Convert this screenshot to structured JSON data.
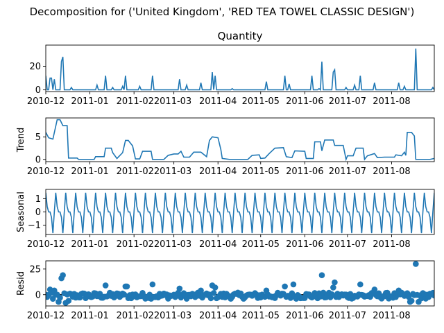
{
  "chart_data": {
    "type": "line",
    "suptitle": "Decomposition for ('United Kingdom', 'RED TEA TOWEL CLASSIC DESIGN')",
    "date_range": [
      "2010-12-01",
      "2011-08-31"
    ],
    "x_tick_labels": [
      "2010-12",
      "2011-01",
      "2011-022011-03",
      "2011-04",
      "2011-05",
      "2011-06",
      "2011-07",
      "2011-08"
    ],
    "color": "#1f77b4",
    "panels": [
      {
        "key": "observed",
        "title": "Quantity",
        "ylabel": "",
        "type": "line",
        "ylim": [
          -1.5,
          38
        ],
        "yticks": [
          0,
          20
        ],
        "baseline": 0,
        "spikes": [
          {
            "date": "2010-12-01",
            "value": 12
          },
          {
            "date": "2010-12-04",
            "value": 10
          },
          {
            "date": "2010-12-05",
            "value": 10
          },
          {
            "date": "2010-12-07",
            "value": 9
          },
          {
            "date": "2010-12-12",
            "value": 24
          },
          {
            "date": "2010-12-13",
            "value": 28
          },
          {
            "date": "2010-12-19",
            "value": 2
          },
          {
            "date": "2011-01-06",
            "value": 4
          },
          {
            "date": "2011-01-12",
            "value": 12
          },
          {
            "date": "2011-01-17",
            "value": 2
          },
          {
            "date": "2011-01-24",
            "value": 3
          },
          {
            "date": "2011-01-26",
            "value": 12
          },
          {
            "date": "2011-02-05",
            "value": 3
          },
          {
            "date": "2011-02-14",
            "value": 12
          },
          {
            "date": "2011-03-05",
            "value": 9
          },
          {
            "date": "2011-03-10",
            "value": 4
          },
          {
            "date": "2011-03-20",
            "value": 6
          },
          {
            "date": "2011-03-28",
            "value": 15
          },
          {
            "date": "2011-03-30",
            "value": 12
          },
          {
            "date": "2011-04-11",
            "value": 1
          },
          {
            "date": "2011-05-05",
            "value": 7
          },
          {
            "date": "2011-05-18",
            "value": 12
          },
          {
            "date": "2011-05-21",
            "value": 5
          },
          {
            "date": "2011-06-06",
            "value": 12
          },
          {
            "date": "2011-06-11",
            "value": 1
          },
          {
            "date": "2011-06-13",
            "value": 24
          },
          {
            "date": "2011-06-21",
            "value": 15
          },
          {
            "date": "2011-06-22",
            "value": 17
          },
          {
            "date": "2011-06-30",
            "value": 2
          },
          {
            "date": "2011-07-06",
            "value": 4
          },
          {
            "date": "2011-07-10",
            "value": 12
          },
          {
            "date": "2011-07-20",
            "value": 6
          },
          {
            "date": "2011-08-06",
            "value": 6
          },
          {
            "date": "2011-08-10",
            "value": 3
          },
          {
            "date": "2011-08-18",
            "value": 35
          },
          {
            "date": "2011-08-30",
            "value": 2
          }
        ]
      },
      {
        "key": "trend",
        "title": "",
        "ylabel": "Trend",
        "type": "line",
        "ylim": [
          -0.5,
          9.2
        ],
        "yticks": [
          0,
          5
        ],
        "series": [
          {
            "date": "2010-12-01",
            "value": 6.0
          },
          {
            "date": "2010-12-03",
            "value": 4.8
          },
          {
            "date": "2010-12-06",
            "value": 4.5
          },
          {
            "date": "2010-12-09",
            "value": 8.8
          },
          {
            "date": "2010-12-11",
            "value": 8.8
          },
          {
            "date": "2010-12-13",
            "value": 7.5
          },
          {
            "date": "2010-12-16",
            "value": 7.5
          },
          {
            "date": "2010-12-17",
            "value": 0.3
          },
          {
            "date": "2010-12-23",
            "value": 0.3
          },
          {
            "date": "2010-12-24",
            "value": 0.0
          },
          {
            "date": "2011-01-04",
            "value": 0.0
          },
          {
            "date": "2011-01-05",
            "value": 0.6
          },
          {
            "date": "2011-01-11",
            "value": 0.6
          },
          {
            "date": "2011-01-12",
            "value": 2.5
          },
          {
            "date": "2011-01-16",
            "value": 2.5
          },
          {
            "date": "2011-01-17",
            "value": 1.5
          },
          {
            "date": "2011-01-20",
            "value": 0.2
          },
          {
            "date": "2011-01-24",
            "value": 1.5
          },
          {
            "date": "2011-01-26",
            "value": 4.2
          },
          {
            "date": "2011-01-28",
            "value": 4.2
          },
          {
            "date": "2011-01-31",
            "value": 3.0
          },
          {
            "date": "2011-02-02",
            "value": 0.1
          },
          {
            "date": "2011-02-05",
            "value": 0.1
          },
          {
            "date": "2011-02-07",
            "value": 1.8
          },
          {
            "date": "2011-02-13",
            "value": 1.8
          },
          {
            "date": "2011-02-14",
            "value": 0.0
          },
          {
            "date": "2011-02-22",
            "value": 0.0
          },
          {
            "date": "2011-02-25",
            "value": 0.9
          },
          {
            "date": "2011-03-01",
            "value": 1.2
          },
          {
            "date": "2011-03-04",
            "value": 1.2
          },
          {
            "date": "2011-03-06",
            "value": 1.8
          },
          {
            "date": "2011-03-08",
            "value": 0.5
          },
          {
            "date": "2011-03-12",
            "value": 0.5
          },
          {
            "date": "2011-03-15",
            "value": 1.6
          },
          {
            "date": "2011-03-20",
            "value": 1.6
          },
          {
            "date": "2011-03-24",
            "value": 0.6
          },
          {
            "date": "2011-03-26",
            "value": 4.2
          },
          {
            "date": "2011-03-28",
            "value": 5.0
          },
          {
            "date": "2011-04-01",
            "value": 4.8
          },
          {
            "date": "2011-04-03",
            "value": 2.2
          },
          {
            "date": "2011-04-04",
            "value": 0.2
          },
          {
            "date": "2011-04-09",
            "value": 0.0
          },
          {
            "date": "2011-04-22",
            "value": 0.0
          },
          {
            "date": "2011-04-25",
            "value": 0.9
          },
          {
            "date": "2011-04-30",
            "value": 1.0
          },
          {
            "date": "2011-05-01",
            "value": 0.2
          },
          {
            "date": "2011-05-04",
            "value": 0.3
          },
          {
            "date": "2011-05-07",
            "value": 1.3
          },
          {
            "date": "2011-05-11",
            "value": 2.5
          },
          {
            "date": "2011-05-17",
            "value": 2.6
          },
          {
            "date": "2011-05-19",
            "value": 0.6
          },
          {
            "date": "2011-05-23",
            "value": 0.4
          },
          {
            "date": "2011-05-25",
            "value": 1.9
          },
          {
            "date": "2011-06-01",
            "value": 1.8
          },
          {
            "date": "2011-06-02",
            "value": 0.2
          },
          {
            "date": "2011-06-07",
            "value": 0.2
          },
          {
            "date": "2011-06-08",
            "value": 3.9
          },
          {
            "date": "2011-06-12",
            "value": 3.9
          },
          {
            "date": "2011-06-13",
            "value": 1.9
          },
          {
            "date": "2011-06-15",
            "value": 4.3
          },
          {
            "date": "2011-06-21",
            "value": 4.3
          },
          {
            "date": "2011-06-22",
            "value": 3.1
          },
          {
            "date": "2011-06-28",
            "value": 3.1
          },
          {
            "date": "2011-06-30",
            "value": 0.0
          },
          {
            "date": "2011-07-01",
            "value": 0.8
          },
          {
            "date": "2011-07-05",
            "value": 0.8
          },
          {
            "date": "2011-07-07",
            "value": 2.5
          },
          {
            "date": "2011-07-12",
            "value": 2.5
          },
          {
            "date": "2011-07-13",
            "value": 0.0
          },
          {
            "date": "2011-07-15",
            "value": 0.8
          },
          {
            "date": "2011-07-20",
            "value": 1.3
          },
          {
            "date": "2011-07-22",
            "value": 0.4
          },
          {
            "date": "2011-07-27",
            "value": 0.5
          },
          {
            "date": "2011-08-03",
            "value": 0.5
          },
          {
            "date": "2011-08-04",
            "value": 1.0
          },
          {
            "date": "2011-08-08",
            "value": 0.8
          },
          {
            "date": "2011-08-10",
            "value": 1.6
          },
          {
            "date": "2011-08-11",
            "value": 0.9
          },
          {
            "date": "2011-08-12",
            "value": 6.0
          },
          {
            "date": "2011-08-15",
            "value": 6.0
          },
          {
            "date": "2011-08-17",
            "value": 5.2
          },
          {
            "date": "2011-08-18",
            "value": 0.0
          },
          {
            "date": "2011-08-28",
            "value": 0.0
          },
          {
            "date": "2011-08-31",
            "value": 0.2
          }
        ]
      },
      {
        "key": "seasonal",
        "title": "",
        "ylabel": "Seasonal",
        "type": "line",
        "ylim": [
          -1.7,
          1.7
        ],
        "yticks": [
          -1,
          0,
          1
        ],
        "period_days": 7,
        "weekly_pattern": [
          1.45,
          0.4,
          0.0,
          0.0,
          -0.4,
          -1.6,
          0.0
        ]
      },
      {
        "key": "resid",
        "title": "",
        "ylabel": "Resid",
        "type": "scatter",
        "ylim": [
          -11,
          33
        ],
        "yticks": [
          0,
          25
        ],
        "baseline": 0,
        "noise_range": [
          -4,
          2
        ],
        "outliers": [
          {
            "date": "2010-12-04",
            "value": 5
          },
          {
            "date": "2010-12-06",
            "value": -4
          },
          {
            "date": "2010-12-07",
            "value": 4
          },
          {
            "date": "2010-12-10",
            "value": -7
          },
          {
            "date": "2010-12-12",
            "value": 16
          },
          {
            "date": "2010-12-13",
            "value": 19
          },
          {
            "date": "2010-12-15",
            "value": -8
          },
          {
            "date": "2010-12-17",
            "value": -6
          },
          {
            "date": "2011-01-12",
            "value": 9
          },
          {
            "date": "2011-01-26",
            "value": 8
          },
          {
            "date": "2011-01-27",
            "value": 8
          },
          {
            "date": "2011-02-14",
            "value": 10
          },
          {
            "date": "2011-03-05",
            "value": 6
          },
          {
            "date": "2011-03-20",
            "value": 4
          },
          {
            "date": "2011-03-28",
            "value": 9
          },
          {
            "date": "2011-03-30",
            "value": 7
          },
          {
            "date": "2011-05-05",
            "value": 4
          },
          {
            "date": "2011-05-18",
            "value": 8
          },
          {
            "date": "2011-05-24",
            "value": 10
          },
          {
            "date": "2011-06-13",
            "value": 19
          },
          {
            "date": "2011-06-21",
            "value": 7
          },
          {
            "date": "2011-06-22",
            "value": 12
          },
          {
            "date": "2011-07-10",
            "value": 10
          },
          {
            "date": "2011-07-20",
            "value": 5
          },
          {
            "date": "2011-08-06",
            "value": 4
          },
          {
            "date": "2011-08-18",
            "value": 30
          },
          {
            "date": "2011-08-15",
            "value": -6
          },
          {
            "date": "2011-08-14",
            "value": -7
          },
          {
            "date": "2011-08-20",
            "value": -7
          }
        ]
      }
    ]
  }
}
